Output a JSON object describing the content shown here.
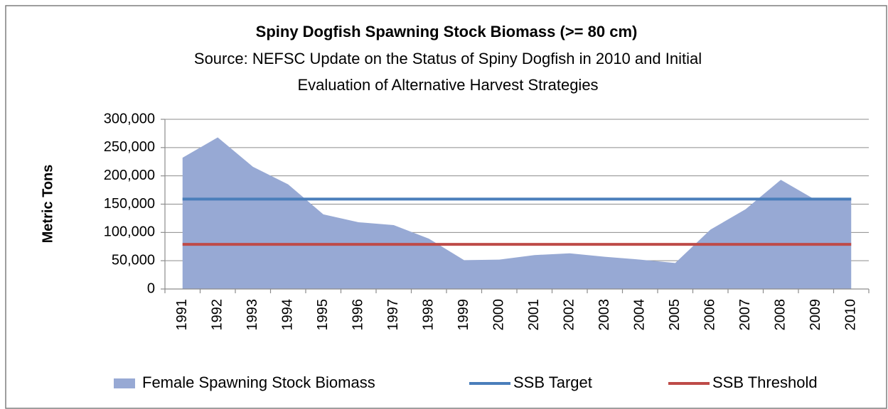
{
  "chart_data": {
    "type": "area",
    "title": "Spiny Dogfish Spawning Stock Biomass (>= 80 cm)",
    "subtitle": [
      "Source: NEFSC Update on the Status of Spiny Dogfish in 2010 and Initial",
      "Evaluation of Alternative Harvest Strategies"
    ],
    "y_label": "Metric Tons",
    "categories": [
      "1991",
      "1992",
      "1993",
      "1994",
      "1995",
      "1996",
      "1997",
      "1998",
      "1999",
      "2000",
      "2001",
      "2002",
      "2003",
      "2004",
      "2005",
      "2006",
      "2007",
      "2008",
      "2009",
      "2010"
    ],
    "series": [
      {
        "name": "Female Spawning Stock Biomass",
        "type": "area",
        "color": "#97a9d4",
        "values": [
          232000,
          268000,
          216000,
          185000,
          132000,
          118000,
          113000,
          89000,
          51000,
          52000,
          60000,
          63000,
          57000,
          52000,
          46000,
          105000,
          141000,
          193000,
          157000,
          160000
        ]
      },
      {
        "name": "SSB Target",
        "type": "line",
        "color": "#4a7ebb",
        "values": [
          159000,
          159000,
          159000,
          159000,
          159000,
          159000,
          159000,
          159000,
          159000,
          159000,
          159000,
          159000,
          159000,
          159000,
          159000,
          159000,
          159000,
          159000,
          159000,
          159000
        ]
      },
      {
        "name": "SSB Threshold",
        "type": "line",
        "color": "#be4b48",
        "values": [
          79000,
          79000,
          79000,
          79000,
          79000,
          79000,
          79000,
          79000,
          79000,
          79000,
          79000,
          79000,
          79000,
          79000,
          79000,
          79000,
          79000,
          79000,
          79000,
          79000
        ]
      }
    ],
    "ylim": [
      0,
      300000
    ],
    "yticks": [
      0,
      {
        "value": 50000,
        "label": "50,000"
      },
      {
        "value": 100000,
        "label": "100,000"
      },
      {
        "value": 150000,
        "label": "150,000"
      },
      {
        "value": 200000,
        "label": "200,000"
      },
      {
        "value": 250000,
        "label": "250,000"
      },
      {
        "value": 300000,
        "label": "300,000"
      }
    ],
    "grid": true,
    "legend": "bottom"
  }
}
